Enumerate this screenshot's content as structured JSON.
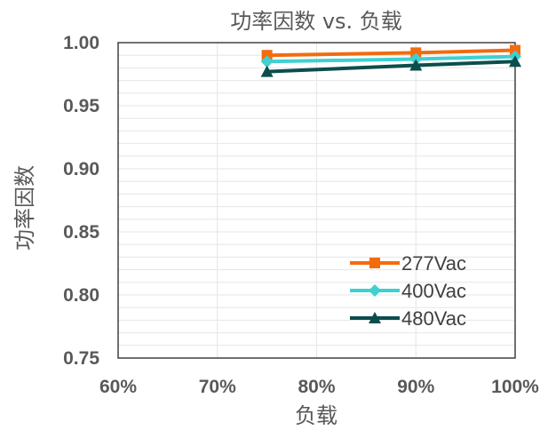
{
  "chart_data": {
    "type": "line",
    "title": "功率因数 vs. 负载",
    "xlabel": "负载",
    "ylabel": "功率因数",
    "x_ticks": [
      "60%",
      "70%",
      "80%",
      "90%",
      "100%"
    ],
    "y_ticks": [
      "0.75",
      "0.80",
      "0.85",
      "0.90",
      "0.95",
      "1.00"
    ],
    "xlim": [
      60,
      100
    ],
    "ylim": [
      0.75,
      1.0
    ],
    "grid": true,
    "legend_position": "bottom-right",
    "x": [
      75,
      90,
      100
    ],
    "series": [
      {
        "name": "277Vac",
        "values": [
          0.99,
          0.992,
          0.994
        ],
        "color": "#f26b0f",
        "marker": "square"
      },
      {
        "name": "400Vac",
        "values": [
          0.985,
          0.987,
          0.989
        ],
        "color": "#3fd0d0",
        "marker": "diamond"
      },
      {
        "name": "480Vac",
        "values": [
          0.977,
          0.982,
          0.985
        ],
        "color": "#0c4d4d",
        "marker": "triangle"
      }
    ]
  }
}
